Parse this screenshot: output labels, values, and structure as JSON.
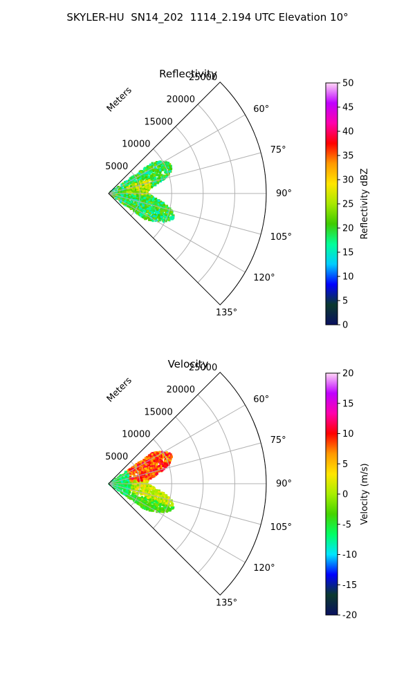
{
  "title": "SKYLER-HU  SN14_202  1114_2.194 UTC Elevation 10°",
  "chart_data": [
    {
      "type": "heatmap",
      "projection": "polar-sector",
      "title": "Reflectivity",
      "radial_label": "Meters",
      "radial_ticks": [
        5000,
        10000,
        15000,
        20000,
        25000
      ],
      "radial_tick_labels": [
        "5000",
        "10000",
        "15000",
        "20000",
        "25000"
      ],
      "rmax": 25000,
      "angle_range_deg": [
        45,
        135
      ],
      "angle_ticks": [
        60,
        75,
        90,
        105,
        120,
        135
      ],
      "angle_tick_labels": [
        "60°",
        "75°",
        "90°",
        "105°",
        "120°",
        "135°"
      ],
      "grid": true,
      "colorbar": {
        "label": "Reflectivity dBZ",
        "range": [
          0,
          50
        ],
        "ticks": [
          0,
          5,
          10,
          15,
          20,
          25,
          30,
          35,
          40,
          45,
          50
        ],
        "tick_labels": [
          "0",
          "5",
          "10",
          "15",
          "20",
          "25",
          "30",
          "35",
          "40",
          "45",
          "50"
        ],
        "stops": [
          "#0a1060",
          "#0b3a2e",
          "#0000ff",
          "#00ccff",
          "#00ff9a",
          "#3ecc00",
          "#a8e800",
          "#ffe600",
          "#ff9900",
          "#ff0000",
          "#ff00aa",
          "#c000ff",
          "#ffd8f6"
        ]
      },
      "data_extent": {
        "range_m": [
          0,
          11000
        ],
        "azimuth_deg": [
          55,
          125
        ]
      },
      "dominant_values": [
        15,
        20,
        25
      ]
    },
    {
      "type": "heatmap",
      "projection": "polar-sector",
      "title": "Velocity",
      "radial_label": "Meters",
      "radial_ticks": [
        5000,
        10000,
        15000,
        20000,
        25000
      ],
      "radial_tick_labels": [
        "5000",
        "10000",
        "15000",
        "20000",
        "25000"
      ],
      "rmax": 25000,
      "angle_range_deg": [
        45,
        135
      ],
      "angle_ticks": [
        60,
        75,
        90,
        105,
        120,
        135
      ],
      "angle_tick_labels": [
        "60°",
        "75°",
        "90°",
        "105°",
        "120°",
        "135°"
      ],
      "grid": true,
      "colorbar": {
        "label": "Velocity (m/s)",
        "range": [
          -20,
          20
        ],
        "ticks": [
          -20,
          -15,
          -10,
          -5,
          0,
          5,
          10,
          15,
          20
        ],
        "tick_labels": [
          "-20",
          "-15",
          "-10",
          "-5",
          "0",
          "5",
          "10",
          "15",
          "20"
        ],
        "stops": [
          "#0a1060",
          "#0b3a2e",
          "#0000ff",
          "#00e5ff",
          "#00ff66",
          "#44d400",
          "#a8ee00",
          "#ffe600",
          "#ff9900",
          "#ff0000",
          "#ff00aa",
          "#c000ff",
          "#ffd8f6"
        ]
      },
      "data_extent": {
        "range_m": [
          0,
          11000
        ],
        "azimuth_deg": [
          55,
          125
        ]
      },
      "dominant_values": [
        -8,
        0,
        10
      ]
    }
  ]
}
